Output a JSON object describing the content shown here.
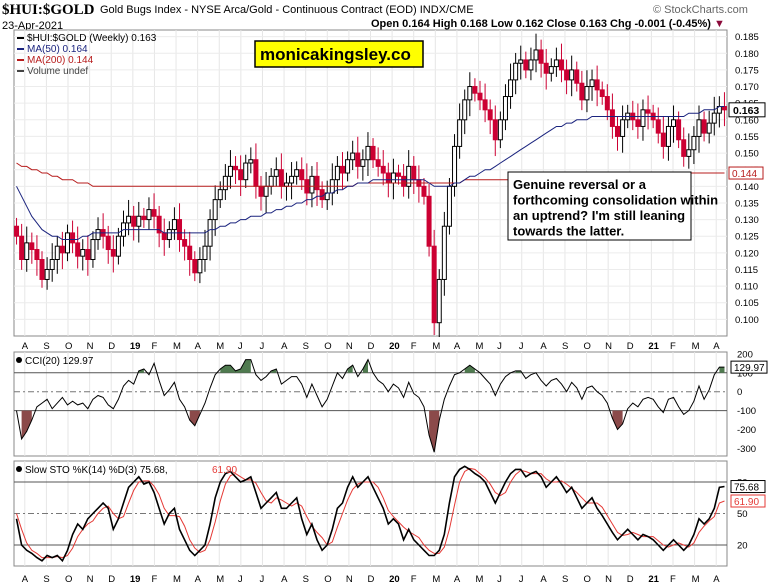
{
  "header": {
    "symbol": "$HUI:$GOLD",
    "name": "Gold Bugs Index - NYSE Arca/Gold - Continuous Contract (EOD) INDX/CME",
    "date": "23-Apr-2021",
    "watermark": "© StockCharts.com",
    "ohlc": "Open 0.164  High 0.168  Low 0.162  Close 0.163  Chg -0.001 (-0.45%)",
    "chg_arrow": "▼"
  },
  "legend": {
    "main": "$HUI:$GOLD (Weekly) 0.163",
    "ma50": "MA(50) 0.164",
    "ma200": "MA(200) 0.144",
    "volume": "Volume undef"
  },
  "colors": {
    "up": "#000000",
    "down": "#cc0033",
    "ma50": "#1a237e",
    "ma200": "#b71c1c",
    "cci_fill": "#4f7a4f",
    "cci_fill_neg": "#8b4a4a",
    "stoch_k": "#000000",
    "stoch_d": "#e53935",
    "badge_bg": "#ffff00"
  },
  "badge": "monicakingsley.co",
  "annotation": "Genuine reversal or a forthcoming consolidation within an uptrend? I'm still leaning towards the latter.",
  "cci_label": "CCI(20) 129.97",
  "stoch_label_prefix": "Slow STO %K(14) %D(3) 75.68,",
  "stoch_label_d": "61.90",
  "chart_data": [
    {
      "type": "candlestick",
      "title": "$HUI:$GOLD (Weekly)",
      "x_tick_labels": [
        "A",
        "S",
        "O",
        "N",
        "D",
        "19",
        "F",
        "M",
        "A",
        "M",
        "J",
        "J",
        "A",
        "S",
        "O",
        "N",
        "D",
        "20",
        "F",
        "M",
        "A",
        "M",
        "J",
        "J",
        "A",
        "S",
        "O",
        "N",
        "D",
        "21",
        "F",
        "M",
        "A"
      ],
      "ylim": [
        0.095,
        0.187
      ],
      "y_ticks": [
        0.1,
        0.105,
        0.11,
        0.115,
        0.12,
        0.125,
        0.13,
        0.135,
        0.14,
        0.145,
        0.15,
        0.155,
        0.16,
        0.165,
        0.17,
        0.175,
        0.18,
        0.185
      ],
      "last_labels": {
        "close": "0.163",
        "ma200": "0.144"
      },
      "closes": [
        0.125,
        0.118,
        0.123,
        0.121,
        0.118,
        0.112,
        0.115,
        0.118,
        0.122,
        0.12,
        0.126,
        0.123,
        0.119,
        0.121,
        0.118,
        0.124,
        0.127,
        0.125,
        0.121,
        0.119,
        0.125,
        0.129,
        0.131,
        0.128,
        0.131,
        0.13,
        0.133,
        0.131,
        0.126,
        0.124,
        0.127,
        0.13,
        0.124,
        0.122,
        0.118,
        0.114,
        0.118,
        0.122,
        0.13,
        0.136,
        0.139,
        0.143,
        0.146,
        0.145,
        0.142,
        0.147,
        0.148,
        0.14,
        0.137,
        0.14,
        0.143,
        0.145,
        0.14,
        0.141,
        0.143,
        0.145,
        0.142,
        0.138,
        0.143,
        0.139,
        0.136,
        0.138,
        0.142,
        0.146,
        0.144,
        0.148,
        0.15,
        0.146,
        0.148,
        0.152,
        0.148,
        0.146,
        0.144,
        0.141,
        0.144,
        0.143,
        0.14,
        0.146,
        0.142,
        0.14,
        0.137,
        0.122,
        0.099,
        0.112,
        0.128,
        0.14,
        0.152,
        0.16,
        0.166,
        0.17,
        0.168,
        0.166,
        0.163,
        0.16,
        0.154,
        0.16,
        0.167,
        0.172,
        0.177,
        0.178,
        0.175,
        0.178,
        0.181,
        0.177,
        0.174,
        0.176,
        0.178,
        0.175,
        0.172,
        0.175,
        0.171,
        0.166,
        0.17,
        0.172,
        0.169,
        0.167,
        0.163,
        0.158,
        0.155,
        0.16,
        0.162,
        0.16,
        0.158,
        0.163,
        0.162,
        0.16,
        0.156,
        0.152,
        0.158,
        0.16,
        0.154,
        0.149,
        0.151,
        0.155,
        0.16,
        0.156,
        0.159,
        0.162,
        0.164,
        0.163
      ],
      "ma50": [
        0.14,
        0.137,
        0.134,
        0.131,
        0.129,
        0.127,
        0.126,
        0.125,
        0.125,
        0.124,
        0.124,
        0.124,
        0.124,
        0.125,
        0.125,
        0.126,
        0.126,
        0.126,
        0.126,
        0.126,
        0.126,
        0.127,
        0.127,
        0.127,
        0.127,
        0.127,
        0.127,
        0.127,
        0.127,
        0.126,
        0.126,
        0.126,
        0.126,
        0.126,
        0.126,
        0.126,
        0.126,
        0.126,
        0.127,
        0.127,
        0.128,
        0.128,
        0.129,
        0.129,
        0.13,
        0.13,
        0.131,
        0.131,
        0.131,
        0.132,
        0.132,
        0.133,
        0.133,
        0.134,
        0.134,
        0.135,
        0.135,
        0.136,
        0.136,
        0.137,
        0.137,
        0.138,
        0.138,
        0.139,
        0.139,
        0.14,
        0.14,
        0.141,
        0.141,
        0.141,
        0.142,
        0.142,
        0.142,
        0.142,
        0.142,
        0.142,
        0.142,
        0.142,
        0.142,
        0.142,
        0.142,
        0.141,
        0.14,
        0.14,
        0.14,
        0.14,
        0.141,
        0.141,
        0.142,
        0.143,
        0.143,
        0.144,
        0.145,
        0.145,
        0.146,
        0.147,
        0.148,
        0.149,
        0.15,
        0.151,
        0.152,
        0.153,
        0.154,
        0.155,
        0.156,
        0.157,
        0.158,
        0.158,
        0.159,
        0.159,
        0.16,
        0.16,
        0.16,
        0.161,
        0.161,
        0.161,
        0.161,
        0.161,
        0.161,
        0.161,
        0.161,
        0.161,
        0.161,
        0.161,
        0.161,
        0.161,
        0.161,
        0.161,
        0.161,
        0.161,
        0.161,
        0.161,
        0.162,
        0.162,
        0.162,
        0.163,
        0.163,
        0.163,
        0.164,
        0.164
      ],
      "ma200": [
        0.147,
        0.146,
        0.146,
        0.145,
        0.145,
        0.144,
        0.144,
        0.143,
        0.143,
        0.142,
        0.142,
        0.142,
        0.141,
        0.141,
        0.141,
        0.14,
        0.14,
        0.14,
        0.14,
        0.14,
        0.14,
        0.14,
        0.14,
        0.14,
        0.14,
        0.14,
        0.14,
        0.14,
        0.14,
        0.14,
        0.14,
        0.14,
        0.14,
        0.14,
        0.14,
        0.14,
        0.14,
        0.14,
        0.14,
        0.14,
        0.14,
        0.14,
        0.14,
        0.14,
        0.14,
        0.14,
        0.14,
        0.14,
        0.14,
        0.14,
        0.14,
        0.14,
        0.14,
        0.14,
        0.14,
        0.14,
        0.14,
        0.14,
        0.14,
        0.14,
        0.14,
        0.14,
        0.14,
        0.14,
        0.14,
        0.14,
        0.14,
        0.141,
        0.141,
        0.141,
        0.141,
        0.141,
        0.141,
        0.141,
        0.141,
        0.141,
        0.141,
        0.141,
        0.141,
        0.141,
        0.141,
        0.141,
        0.141,
        0.141,
        0.141,
        0.141,
        0.141,
        0.141,
        0.142,
        0.142,
        0.142,
        0.142,
        0.142,
        0.142,
        0.142,
        0.142,
        0.142,
        0.142,
        0.143,
        0.143,
        0.143,
        0.143,
        0.143,
        0.143,
        0.143,
        0.143,
        0.143,
        0.143,
        0.143,
        0.143,
        0.143,
        0.143,
        0.143,
        0.143,
        0.143,
        0.143,
        0.143,
        0.144,
        0.144,
        0.144,
        0.144,
        0.144,
        0.144,
        0.144,
        0.144,
        0.144,
        0.144,
        0.144,
        0.144,
        0.144,
        0.144,
        0.144,
        0.144,
        0.144,
        0.144,
        0.144,
        0.144,
        0.144,
        0.144,
        0.144
      ]
    },
    {
      "type": "line",
      "title": "CCI(20) 129.97",
      "ylim": [
        -340,
        210
      ],
      "y_ticks": [
        200,
        100,
        0,
        -100,
        -200,
        -300
      ],
      "reference_lines": [
        100,
        -100
      ],
      "last_label": "129.97",
      "values": [
        -100,
        -250,
        -210,
        -150,
        -80,
        -60,
        -40,
        -90,
        -60,
        -30,
        -70,
        -50,
        -70,
        -60,
        -90,
        -40,
        -20,
        -30,
        -70,
        -90,
        -40,
        30,
        60,
        40,
        110,
        120,
        90,
        150,
        60,
        -20,
        10,
        50,
        -40,
        -80,
        -150,
        -180,
        -120,
        -60,
        20,
        90,
        120,
        140,
        140,
        110,
        120,
        170,
        170,
        90,
        60,
        80,
        110,
        120,
        40,
        60,
        80,
        80,
        40,
        -30,
        40,
        -20,
        -80,
        -40,
        30,
        100,
        70,
        120,
        140,
        80,
        120,
        170,
        100,
        60,
        40,
        0,
        40,
        20,
        -30,
        50,
        -10,
        -30,
        -80,
        -230,
        -320,
        -150,
        -40,
        30,
        90,
        100,
        120,
        140,
        120,
        100,
        70,
        40,
        -20,
        40,
        80,
        100,
        110,
        110,
        70,
        90,
        100,
        60,
        30,
        60,
        70,
        40,
        0,
        50,
        20,
        -40,
        20,
        30,
        0,
        -20,
        -60,
        -140,
        -200,
        -170,
        -90,
        -60,
        -80,
        -40,
        -30,
        -40,
        -80,
        -110,
        -40,
        -30,
        -80,
        -120,
        -100,
        -50,
        30,
        -40,
        10,
        90,
        130,
        130
      ]
    },
    {
      "type": "line",
      "title": "Slow STO %K(14) %D(3) 75.68, 61.90",
      "ylim": [
        0,
        100
      ],
      "y_ticks": [
        80,
        50,
        20
      ],
      "reference_lines": [
        80,
        50,
        20
      ],
      "last_labels": {
        "k": "75.68",
        "d": "61.90"
      },
      "series": [
        {
          "name": "%K(14)",
          "values": [
            45,
            20,
            15,
            12,
            8,
            5,
            10,
            8,
            10,
            5,
            15,
            30,
            40,
            35,
            45,
            50,
            55,
            60,
            55,
            35,
            45,
            60,
            75,
            80,
            85,
            78,
            80,
            70,
            55,
            40,
            50,
            55,
            35,
            25,
            15,
            10,
            15,
            20,
            40,
            65,
            80,
            88,
            90,
            85,
            80,
            82,
            85,
            70,
            55,
            60,
            65,
            70,
            55,
            55,
            60,
            65,
            45,
            30,
            40,
            25,
            15,
            20,
            35,
            55,
            60,
            75,
            85,
            75,
            80,
            85,
            75,
            65,
            55,
            40,
            45,
            40,
            25,
            35,
            25,
            20,
            15,
            10,
            10,
            15,
            30,
            60,
            85,
            92,
            95,
            92,
            88,
            85,
            80,
            70,
            60,
            70,
            80,
            88,
            92,
            92,
            85,
            88,
            90,
            85,
            75,
            80,
            85,
            78,
            70,
            75,
            65,
            55,
            60,
            65,
            55,
            48,
            40,
            32,
            25,
            30,
            35,
            30,
            25,
            30,
            28,
            25,
            20,
            15,
            20,
            25,
            20,
            15,
            20,
            30,
            45,
            40,
            45,
            55,
            75,
            75.68
          ]
        },
        {
          "name": "%D(3)",
          "values": [
            50,
            35,
            22,
            15,
            12,
            8,
            8,
            8,
            9,
            8,
            10,
            17,
            28,
            35,
            40,
            43,
            50,
            55,
            57,
            50,
            45,
            47,
            60,
            72,
            80,
            81,
            81,
            76,
            68,
            55,
            48,
            48,
            47,
            38,
            25,
            17,
            13,
            15,
            25,
            42,
            62,
            78,
            86,
            88,
            85,
            82,
            82,
            79,
            70,
            62,
            60,
            65,
            63,
            60,
            57,
            60,
            57,
            47,
            38,
            32,
            27,
            20,
            23,
            37,
            50,
            63,
            73,
            78,
            80,
            80,
            80,
            75,
            65,
            53,
            47,
            42,
            37,
            33,
            30,
            27,
            20,
            15,
            12,
            12,
            18,
            35,
            58,
            80,
            90,
            93,
            92,
            88,
            84,
            78,
            70,
            67,
            70,
            80,
            87,
            91,
            90,
            88,
            88,
            88,
            83,
            80,
            80,
            81,
            78,
            74,
            70,
            65,
            60,
            60,
            60,
            56,
            48,
            40,
            32,
            29,
            30,
            32,
            30,
            28,
            28,
            28,
            24,
            20,
            18,
            20,
            22,
            20,
            18,
            22,
            32,
            38,
            43,
            47,
            60,
            61.9
          ]
        }
      ]
    }
  ]
}
